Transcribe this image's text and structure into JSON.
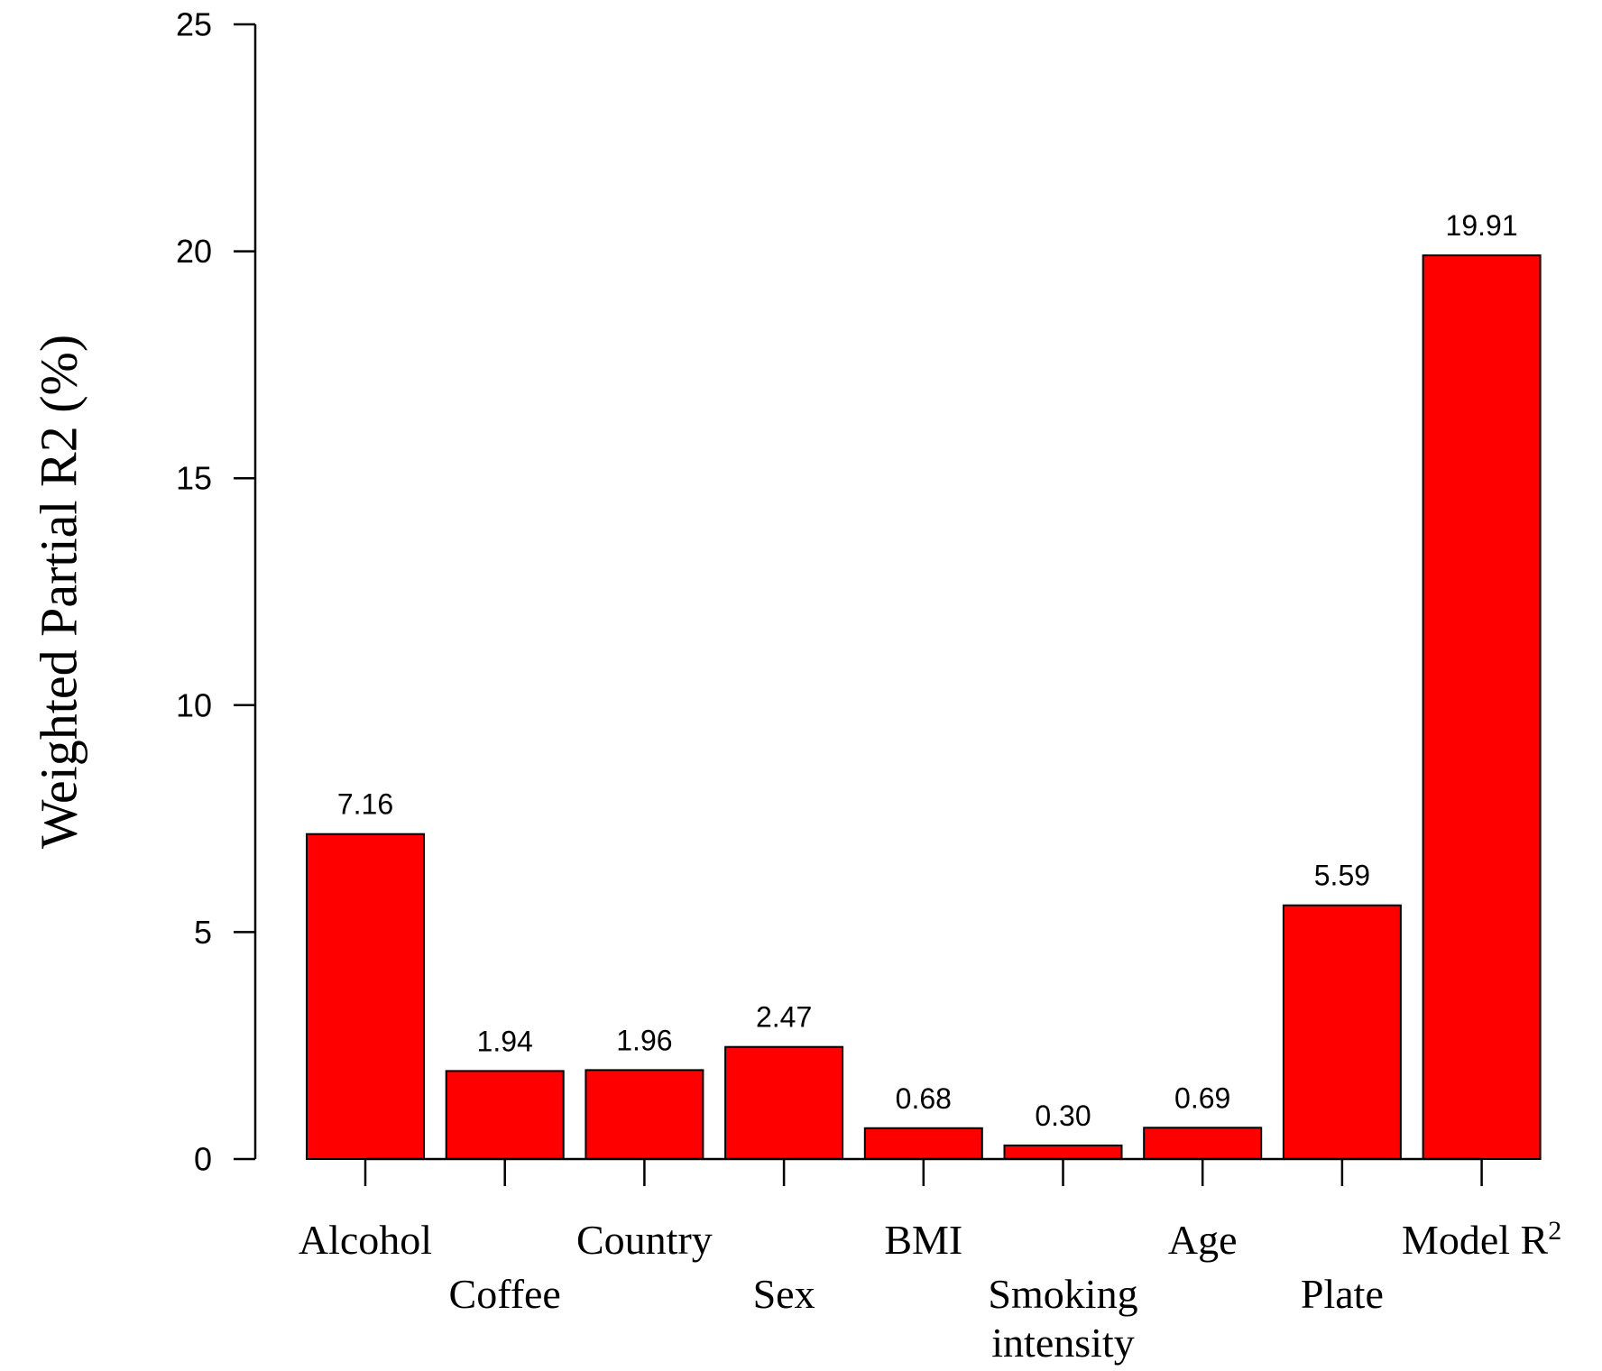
{
  "chart_data": {
    "type": "bar",
    "categories": [
      "Alcohol",
      "Coffee",
      "Country",
      "Sex",
      "BMI",
      "Smoking intensity",
      "Age",
      "Plate",
      "Model R²"
    ],
    "category_label_lines": [
      [
        "Alcohol"
      ],
      [
        "Coffee"
      ],
      [
        "Country"
      ],
      [
        "Sex"
      ],
      [
        "BMI"
      ],
      [
        "Smoking",
        "intensity"
      ],
      [
        "Age"
      ],
      [
        "Plate"
      ],
      [
        "Model R",
        "2"
      ]
    ],
    "values": [
      7.16,
      1.94,
      1.96,
      2.47,
      0.68,
      0.3,
      0.69,
      5.59,
      19.91
    ],
    "data_labels": [
      "7.16",
      "1.94",
      "1.96",
      "2.47",
      "0.68",
      "0.30",
      "0.69",
      "5.59",
      "19.91"
    ],
    "ylabel": "Weighted Partial R2 (%)",
    "xlabel": "",
    "title": "",
    "ylim": [
      0,
      25
    ],
    "yticks": [
      0,
      5,
      10,
      15,
      20,
      25
    ],
    "ytick_labels": [
      "0",
      "5",
      "10",
      "15",
      "20",
      "25"
    ],
    "grid": false,
    "bar_color": "#ff0000"
  }
}
